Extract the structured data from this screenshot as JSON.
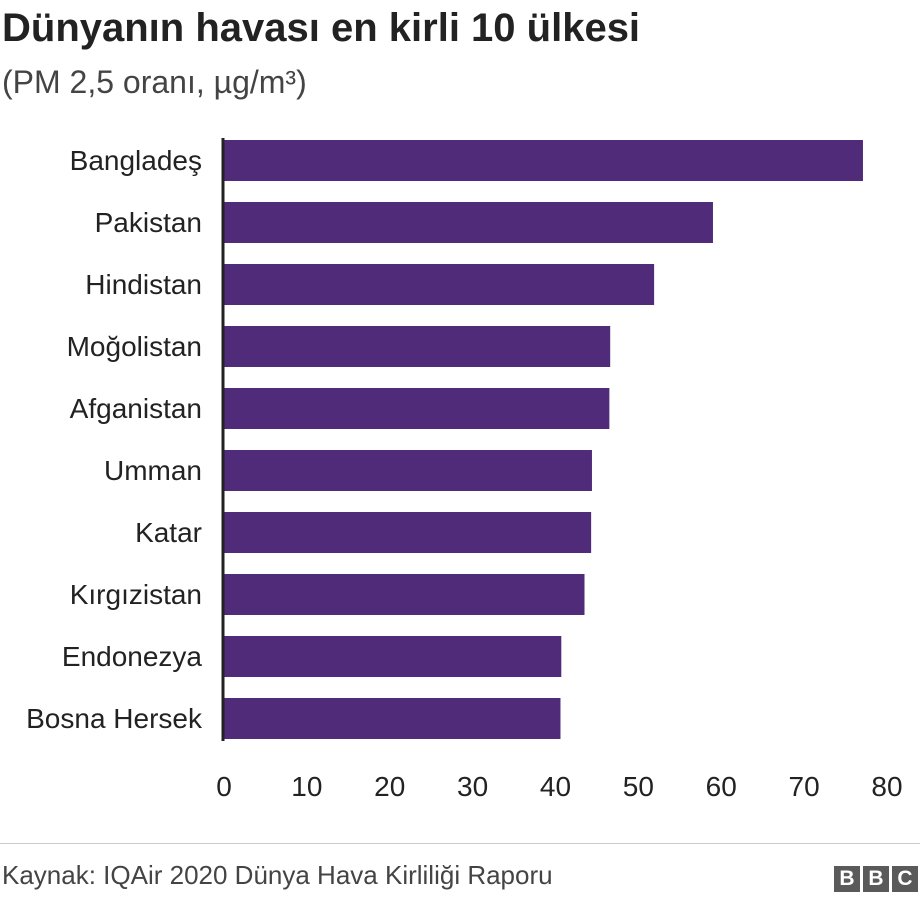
{
  "chart_data": {
    "type": "bar",
    "orientation": "horizontal",
    "title": "Dünyanın havası en kirli 10 ülkesi",
    "subtitle": "(PM 2,5 oranı, µg/m³)",
    "categories": [
      "Bangladeş",
      "Pakistan",
      "Hindistan",
      "Moğolistan",
      "Afganistan",
      "Umman",
      "Katar",
      "Kırgızistan",
      "Endonezya",
      "Bosna Hersek"
    ],
    "values": [
      77.1,
      59.0,
      51.9,
      46.6,
      46.5,
      44.4,
      44.3,
      43.5,
      40.7,
      40.6
    ],
    "xlim": [
      0,
      80
    ],
    "xticks": [
      "0",
      "10",
      "20",
      "30",
      "40",
      "50",
      "60",
      "70",
      "80"
    ],
    "bar_color": "#4f2b7a",
    "grid": false
  },
  "footer": {
    "source": "Kaynak: IQAir 2020 Dünya Hava Kirliliği Raporu",
    "logo_letters": [
      "B",
      "B",
      "C"
    ]
  }
}
